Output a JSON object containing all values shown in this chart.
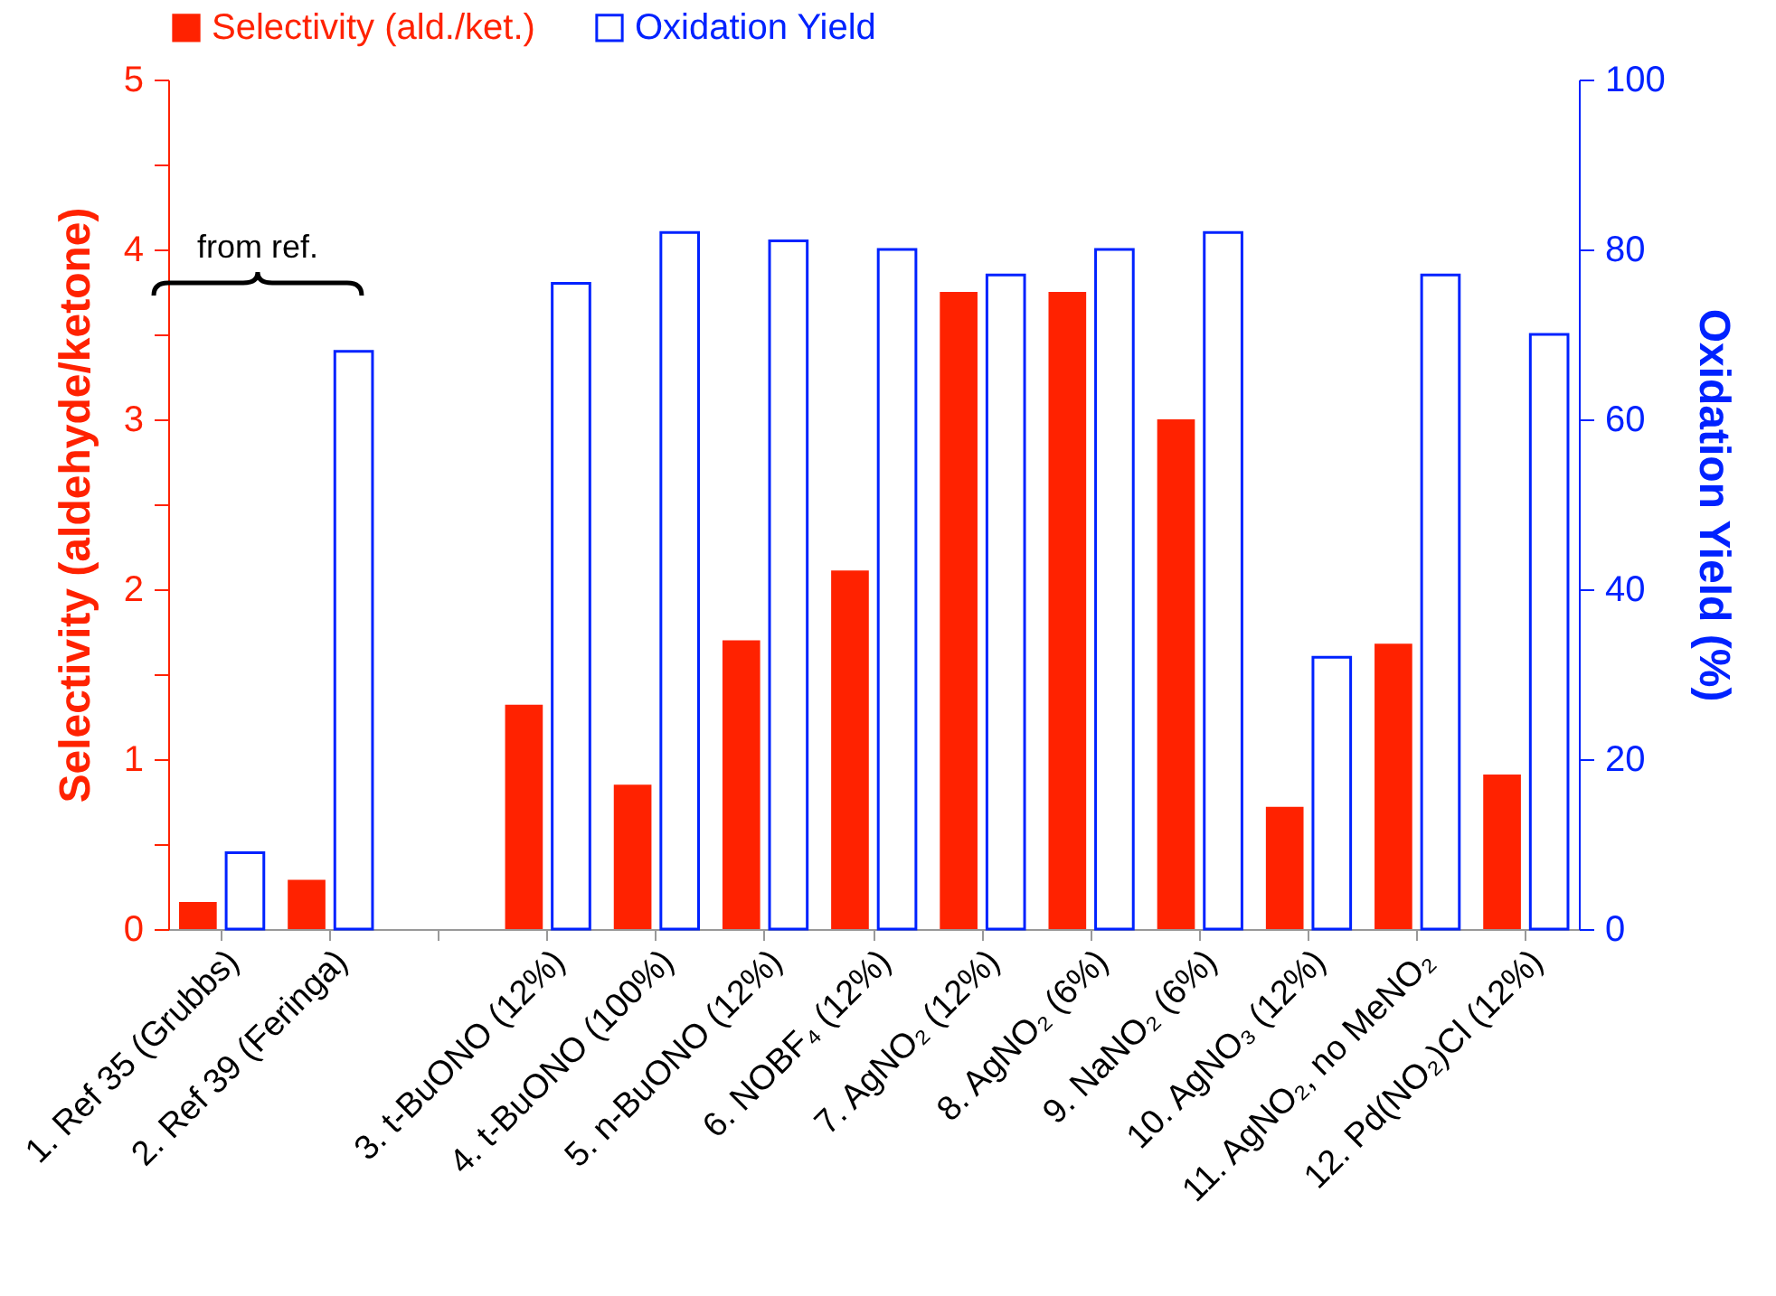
{
  "chart_data": {
    "type": "bar",
    "categories": [
      "1. Ref 35 (Grubbs)",
      "2. Ref 39 (Feringa)",
      null,
      "3. t-BuONO (12%)",
      "4. t-BuONO (100%)",
      "5. n-BuONO (12%)",
      "6. NOBF₄ (12%)",
      "7. AgNO₂ (12%)",
      "8. AgNO₂ (6%)",
      "9. NaNO₂ (6%)",
      "10. AgNO₃ (12%)",
      "11. AgNO₂, no MeNO₂",
      "12. Pd(NO₂)Cl (12%)"
    ],
    "series": [
      {
        "name": "Selectivity (ald./ket.)",
        "color": "#ff2200",
        "values": [
          0.16,
          0.29,
          null,
          1.32,
          0.85,
          1.7,
          2.11,
          3.75,
          3.75,
          3.0,
          0.72,
          1.68,
          0.91
        ]
      },
      {
        "name": "Oxidation Yield",
        "color": "#0022ff",
        "axis": "y2",
        "values": [
          9,
          68,
          null,
          76,
          82,
          81,
          80,
          77,
          80,
          82,
          32,
          77,
          70
        ]
      }
    ],
    "ylabel": "Selectivity (aldehyde/ketone)",
    "y2label": "Oxidation Yield (%)",
    "ylim": [
      0,
      5
    ],
    "yticks": [
      0,
      {
        "value": 0.5,
        "label": null
      },
      1,
      {
        "value": 1.5,
        "label": null
      },
      2,
      {
        "value": 2.5,
        "label": null
      },
      3,
      {
        "value": 3.5,
        "label": null
      },
      4,
      {
        "value": 4.5,
        "label": null
      },
      5
    ],
    "y2lim": [
      0,
      100
    ],
    "y2ticks": [
      0,
      20,
      40,
      60,
      80,
      100
    ],
    "annotations": [
      "from ref."
    ],
    "legend": "top",
    "grid": false
  }
}
